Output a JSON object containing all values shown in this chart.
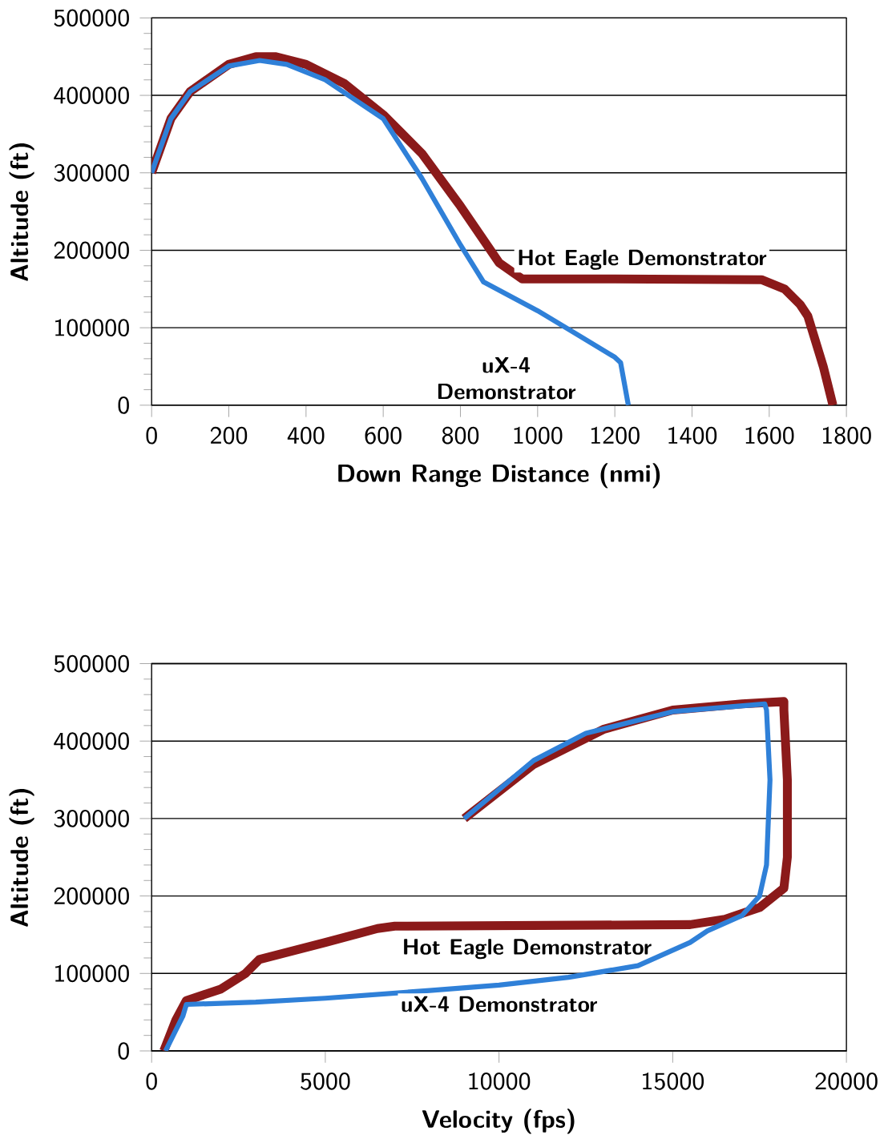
{
  "chart_data": [
    {
      "type": "line",
      "xlabel": "Down Range Distance (nmi)",
      "ylabel": "Altitude (ft)",
      "xlim": [
        0,
        1800
      ],
      "ylim": [
        0,
        500000
      ],
      "xticks": [
        0,
        200,
        400,
        600,
        800,
        1000,
        1200,
        1400,
        1600,
        1800
      ],
      "yticks": [
        0,
        100000,
        200000,
        300000,
        400000,
        500000
      ],
      "grid": "y",
      "series": [
        {
          "name": "Hot Eagle Demonstrator",
          "color": "#8b1a1a",
          "x": [
            0,
            50,
            100,
            200,
            270,
            320,
            400,
            500,
            600,
            700,
            800,
            900,
            960,
            1200,
            1580,
            1640,
            1680,
            1700,
            1740,
            1765
          ],
          "values": [
            300000,
            370000,
            405000,
            440000,
            450000,
            450000,
            440000,
            415000,
            375000,
            325000,
            257000,
            184000,
            163000,
            163000,
            162000,
            150000,
            130000,
            115000,
            50000,
            0
          ]
        },
        {
          "name": "uX-4 Demonstrator",
          "color": "#2f80d8",
          "x": [
            0,
            50,
            100,
            200,
            280,
            350,
            450,
            600,
            700,
            800,
            860,
            1000,
            1100,
            1200,
            1215,
            1235
          ],
          "values": [
            300000,
            370000,
            405000,
            438000,
            445000,
            440000,
            420000,
            370000,
            293000,
            207000,
            159000,
            122000,
            92000,
            62000,
            55000,
            0
          ]
        }
      ]
    },
    {
      "type": "line",
      "xlabel": "Velocity (fps)",
      "ylabel": "Altitude (ft)",
      "xlim": [
        0,
        20000
      ],
      "ylim": [
        0,
        500000
      ],
      "xticks": [
        0,
        5000,
        10000,
        15000,
        20000
      ],
      "yticks": [
        0,
        100000,
        200000,
        300000,
        400000,
        500000
      ],
      "grid": "y",
      "series": [
        {
          "name": "Hot Eagle Demonstrator",
          "color": "#8b1a1a",
          "x": [
            9000,
            11000,
            13000,
            15000,
            17000,
            18200,
            18200,
            18300,
            18300,
            18200,
            17500,
            16500,
            15500,
            7000,
            6500,
            5000,
            3100,
            2700,
            2000,
            1000,
            700,
            350
          ],
          "values": [
            300000,
            370000,
            415000,
            440000,
            448000,
            451000,
            440000,
            350000,
            250000,
            210000,
            185000,
            170000,
            163000,
            161000,
            158000,
            140000,
            118000,
            100000,
            80000,
            65000,
            40000,
            0
          ]
        },
        {
          "name": "uX-4 Demonstrator",
          "color": "#2f80d8",
          "x": [
            9000,
            11000,
            12500,
            15000,
            17650,
            17700,
            17800,
            17700,
            17500,
            17000,
            16000,
            15500,
            14000,
            12000,
            10000,
            8000,
            5000,
            3000,
            1000,
            900,
            400
          ],
          "values": [
            300000,
            375000,
            410000,
            438000,
            448000,
            440000,
            350000,
            240000,
            200000,
            175000,
            155000,
            140000,
            110000,
            95000,
            85000,
            78000,
            68000,
            63000,
            60000,
            45000,
            0
          ]
        }
      ]
    }
  ]
}
